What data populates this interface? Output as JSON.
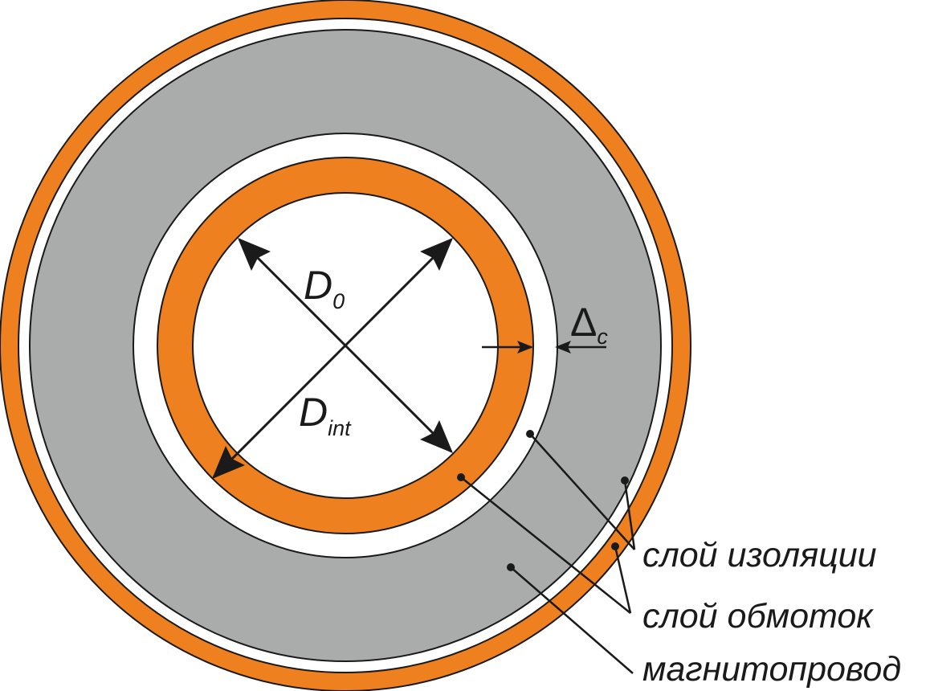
{
  "labels": {
    "d0_main": "D",
    "d0_sub": "0",
    "dint_main": "D",
    "dint_sub": "int",
    "delta_main": "Δ",
    "delta_sub": "c"
  },
  "legend": {
    "insulation": "слой изоляции",
    "windings": "слой обмоток",
    "core": "магнитопровод"
  },
  "colors": {
    "winding": "#ef8020",
    "core": "#aaabab",
    "insulation": "#ffffff",
    "stroke": "#1a1a1a"
  }
}
